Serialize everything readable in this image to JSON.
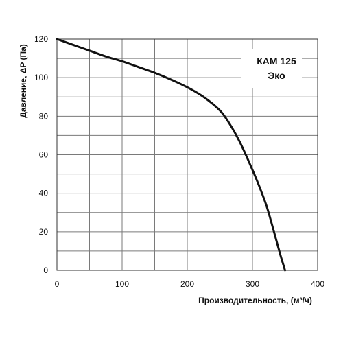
{
  "chart_data": {
    "type": "line",
    "title": "",
    "model_label_line1": "КАМ 125",
    "model_label_line2": "Эко",
    "xlabel": "Производительность, (м³/ч)",
    "ylabel": "Давление, ΔP (Па)",
    "xlim": [
      0,
      400
    ],
    "ylim": [
      0,
      120
    ],
    "x_ticks": [
      0,
      100,
      200,
      300,
      400
    ],
    "x_tick_labels": [
      "0",
      "100",
      "200",
      "300",
      "400"
    ],
    "x_minor_grid_step": 50,
    "y_ticks": [
      0,
      20,
      40,
      60,
      80,
      100,
      120
    ],
    "y_tick_labels": [
      "0",
      "20",
      "40",
      "60",
      "80",
      "100",
      "120"
    ],
    "y_minor_grid_step": 10,
    "grid": true,
    "line_color": "#111111",
    "series": [
      {
        "x": [
          0,
          25,
          50,
          75,
          100,
          125,
          150,
          175,
          200,
          225,
          250,
          265,
          280,
          295,
          310,
          322,
          333,
          342,
          350
        ],
        "y": [
          120,
          117,
          114,
          111,
          108.5,
          105.5,
          102.5,
          99,
          95,
          90,
          83,
          76,
          67,
          56,
          44,
          33,
          20,
          9,
          0
        ]
      }
    ]
  }
}
